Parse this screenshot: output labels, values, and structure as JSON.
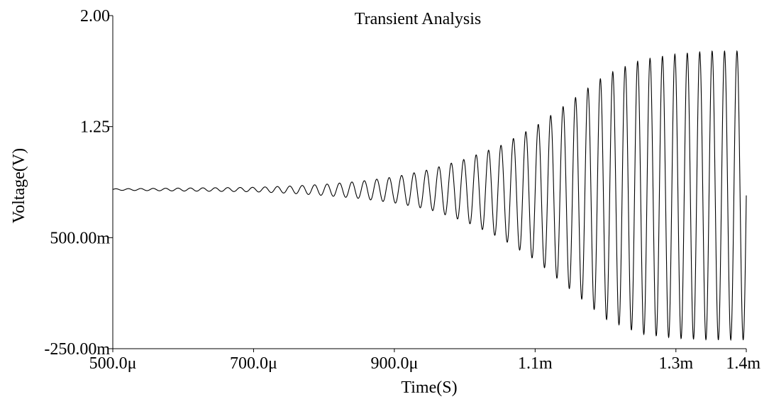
{
  "chart_data": {
    "type": "line",
    "title": "Transient Analysis",
    "xlabel": "Time(S)",
    "ylabel": "Voltage(V)",
    "xlim": [
      0.0005,
      0.0014
    ],
    "ylim": [
      -0.25,
      2.0
    ],
    "x_ticks": [
      {
        "value": 0.0005,
        "label": "500.0μ"
      },
      {
        "value": 0.0007,
        "label": "700.0μ"
      },
      {
        "value": 0.0009,
        "label": "900.0μ"
      },
      {
        "value": 0.0011,
        "label": "1.1m"
      },
      {
        "value": 0.0013,
        "label": "1.3m"
      },
      {
        "value": 0.0014,
        "label": "1.4m"
      }
    ],
    "y_ticks": [
      {
        "value": 2.0,
        "label": "2.00"
      },
      {
        "value": 1.25,
        "label": "1.25"
      },
      {
        "value": 0.5,
        "label": "500.00m"
      },
      {
        "value": -0.25,
        "label": "-250.00m"
      }
    ],
    "grid": false,
    "series": [
      {
        "color": "#000000",
        "oscillation_cycles": 51,
        "envelope": {
          "x": [
            0.0005,
            0.0006,
            0.0007,
            0.00075,
            0.0008,
            0.00085,
            0.0009,
            0.00095,
            0.001,
            0.00105,
            0.0011,
            0.00115,
            0.0012,
            0.00125,
            0.0013,
            0.00135,
            0.0014
          ],
          "upper": [
            0.83,
            0.835,
            0.84,
            0.848,
            0.86,
            0.88,
            0.91,
            0.96,
            1.03,
            1.12,
            1.25,
            1.42,
            1.6,
            1.7,
            1.74,
            1.76,
            1.76
          ],
          "lower": [
            0.82,
            0.815,
            0.81,
            0.8,
            0.785,
            0.765,
            0.735,
            0.69,
            0.61,
            0.5,
            0.35,
            0.15,
            -0.05,
            -0.15,
            -0.18,
            -0.19,
            -0.19
          ]
        }
      }
    ]
  }
}
